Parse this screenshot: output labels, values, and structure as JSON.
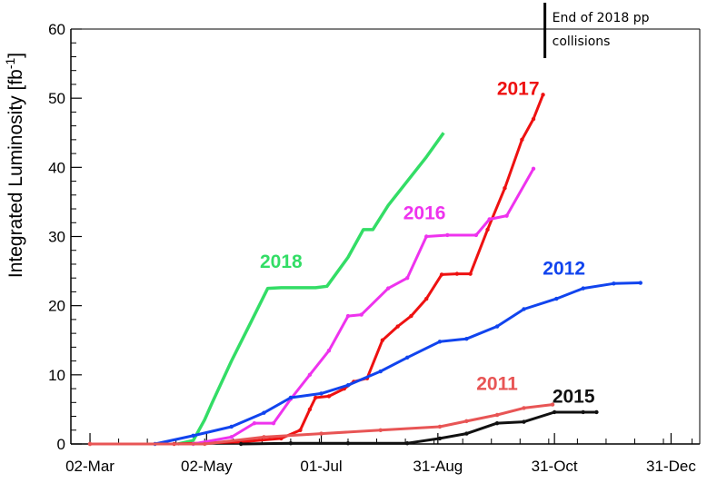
{
  "chart_data": {
    "type": "line",
    "title": "",
    "xlabel": "",
    "ylabel_text": "Integrated Luminosity [fb",
    "ylabel_sup": "-1",
    "ylabel_close": "]",
    "ylim": [
      0,
      60
    ],
    "y_ticks": [
      0,
      10,
      20,
      30,
      40,
      50,
      60
    ],
    "xlim": [
      "2018-02-20",
      "2019-01-15"
    ],
    "x_ticks": [
      {
        "date": "2018-03-02",
        "label": "02-Mar"
      },
      {
        "date": "2018-05-02",
        "label": "02-May"
      },
      {
        "date": "2018-07-01",
        "label": "01-Jul"
      },
      {
        "date": "2018-08-31",
        "label": "31-Aug"
      },
      {
        "date": "2018-10-31",
        "label": "31-Oct"
      },
      {
        "date": "2018-12-31",
        "label": "31-Dec"
      }
    ],
    "grid": false,
    "annotation": {
      "date": "2018-10-26",
      "text_line1": "End of 2018 pp",
      "text_line2": "collisions"
    },
    "series": [
      {
        "name": "2018",
        "color": "#33dd66",
        "label_at": [
          "2018-06-10",
          25.5
        ],
        "x": [
          "2018-04-17",
          "2018-04-25",
          "2018-05-01",
          "2018-05-05",
          "2018-05-15",
          "2018-05-25",
          "2018-06-03",
          "2018-06-10",
          "2018-06-20",
          "2018-06-28",
          "2018-07-04",
          "2018-07-15",
          "2018-07-23",
          "2018-07-28",
          "2018-08-05",
          "2018-08-15",
          "2018-08-25",
          "2018-09-03"
        ],
        "y": [
          0,
          0.5,
          3.5,
          6,
          12,
          17.5,
          22.5,
          22.6,
          22.6,
          22.6,
          22.8,
          27,
          31,
          31,
          34.5,
          38,
          41.5,
          45
        ]
      },
      {
        "name": "2017",
        "color": "#ee1111",
        "label_at": [
          "2018-10-12",
          50.5
        ],
        "x": [
          "2018-03-02",
          "2018-04-15",
          "2018-05-20",
          "2018-06-10",
          "2018-06-20",
          "2018-06-25",
          "2018-06-28",
          "2018-07-05",
          "2018-07-13",
          "2018-07-18",
          "2018-07-25",
          "2018-08-02",
          "2018-08-10",
          "2018-08-17",
          "2018-08-25",
          "2018-09-02",
          "2018-09-10",
          "2018-09-17",
          "2018-09-26",
          "2018-10-05",
          "2018-10-14",
          "2018-10-20",
          "2018-10-25"
        ],
        "y": [
          0,
          0,
          0.3,
          0.8,
          2,
          5,
          6.7,
          6.9,
          8,
          9,
          9.5,
          15,
          17,
          18.5,
          21,
          24.5,
          24.6,
          24.6,
          31,
          37,
          44,
          47,
          50.5
        ]
      },
      {
        "name": "2016",
        "color": "#ee33ee",
        "label_at": [
          "2018-08-24",
          32.5
        ],
        "x": [
          "2018-04-25",
          "2018-05-15",
          "2018-05-27",
          "2018-06-06",
          "2018-06-15",
          "2018-06-25",
          "2018-07-05",
          "2018-07-15",
          "2018-07-22",
          "2018-08-05",
          "2018-08-15",
          "2018-08-25",
          "2018-09-05",
          "2018-09-20",
          "2018-09-27",
          "2018-10-06",
          "2018-10-20"
        ],
        "y": [
          0,
          1,
          3,
          3,
          6.5,
          10,
          13.5,
          18.5,
          18.7,
          22.5,
          24,
          30,
          30.2,
          30.2,
          32.5,
          33,
          39.8
        ]
      },
      {
        "name": "2012",
        "color": "#1144ee",
        "label_at": [
          "2018-11-05",
          24.5
        ],
        "x": [
          "2018-04-05",
          "2018-04-25",
          "2018-05-15",
          "2018-06-01",
          "2018-06-15",
          "2018-07-01",
          "2018-07-15",
          "2018-08-01",
          "2018-08-15",
          "2018-09-01",
          "2018-09-15",
          "2018-10-01",
          "2018-10-15",
          "2018-11-01",
          "2018-11-15",
          "2018-12-01",
          "2018-12-15"
        ],
        "y": [
          0,
          1.2,
          2.5,
          4.5,
          6.7,
          7.3,
          8.5,
          10.5,
          12.5,
          14.8,
          15.2,
          17,
          19.5,
          21,
          22.5,
          23.2,
          23.3
        ]
      },
      {
        "name": "2011",
        "color": "#e85555",
        "label_at": [
          "2018-10-01",
          7.8
        ],
        "x": [
          "2018-03-02",
          "2018-05-01",
          "2018-06-01",
          "2018-07-01",
          "2018-08-01",
          "2018-09-01",
          "2018-09-15",
          "2018-10-01",
          "2018-10-15",
          "2018-10-30"
        ],
        "y": [
          0,
          0,
          1,
          1.5,
          2,
          2.5,
          3.3,
          4.2,
          5.2,
          5.7
        ]
      },
      {
        "name": "2015",
        "color": "#111111",
        "label_at": [
          "2018-11-10",
          6.0
        ],
        "x": [
          "2018-05-20",
          "2018-06-15",
          "2018-07-15",
          "2018-08-15",
          "2018-09-01",
          "2018-09-15",
          "2018-10-01",
          "2018-10-15",
          "2018-10-31",
          "2018-11-15",
          "2018-11-22"
        ],
        "y": [
          0,
          0.1,
          0.1,
          0.1,
          0.8,
          1.5,
          3,
          3.2,
          4.6,
          4.6,
          4.6
        ]
      }
    ]
  }
}
